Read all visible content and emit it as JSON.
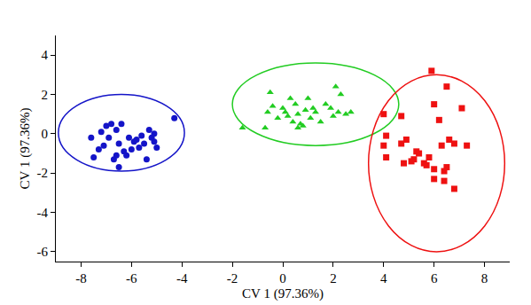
{
  "chart_data": {
    "type": "scatter",
    "x_label": "CV 1 (97.36%)",
    "y_label": "CV 1 (97.36%)",
    "xlim": [
      -9,
      9
    ],
    "ylim": [
      -6.5,
      5
    ],
    "xticks": [
      -8,
      -6,
      -4,
      -2,
      0,
      2,
      4,
      6,
      8
    ],
    "yticks": [
      -6,
      -4,
      -2,
      0,
      2,
      4
    ],
    "grid": false,
    "series": [
      {
        "color": "#1414c8",
        "marker": "circle",
        "x": [
          -7.6,
          -7.5,
          -7.2,
          -7.1,
          -7.0,
          -6.9,
          -6.8,
          -6.7,
          -6.6,
          -6.5,
          -6.5,
          -6.4,
          -6.3,
          -6.2,
          -6.1,
          -6.0,
          -5.9,
          -5.8,
          -5.7,
          -5.6,
          -5.5,
          -5.4,
          -5.3,
          -5.2,
          -5.1,
          -5.1,
          -5.0,
          -4.3,
          -6.6,
          -7.3
        ],
        "y": [
          -0.2,
          -1.2,
          0.1,
          -0.6,
          0.4,
          -0.2,
          0.5,
          -1.3,
          0.2,
          -0.5,
          -1.7,
          0.5,
          -0.9,
          -1.1,
          -0.2,
          -0.8,
          -0.4,
          -0.3,
          -0.7,
          -0.1,
          -0.5,
          -1.3,
          0.2,
          -0.2,
          -0.4,
          0.0,
          -0.7,
          0.8,
          -1.1,
          -0.8
        ],
        "ellipse": {
          "x0": -8.9,
          "x1": -3.9,
          "y0": -1.9,
          "y1": 2.0
        }
      },
      {
        "color": "#22cc22",
        "marker": "triangle-up",
        "x": [
          -1.6,
          -0.6,
          -0.5,
          -0.4,
          -0.2,
          0.0,
          0.1,
          0.2,
          0.3,
          0.4,
          0.5,
          0.6,
          0.6,
          0.7,
          0.8,
          0.9,
          1.0,
          1.2,
          1.3,
          1.5,
          1.7,
          1.9,
          2.0,
          2.1,
          2.2,
          2.3,
          2.5,
          2.7,
          -0.7,
          1.1
        ],
        "y": [
          0.3,
          1.1,
          2.1,
          1.4,
          0.8,
          1.3,
          1.1,
          0.9,
          1.8,
          0.6,
          1.5,
          0.3,
          1.0,
          0.5,
          0.4,
          1.2,
          1.8,
          1.3,
          1.1,
          0.6,
          1.5,
          1.3,
          0.9,
          2.4,
          1.1,
          2.0,
          1.0,
          1.1,
          0.3,
          0.8
        ],
        "ellipse": {
          "x0": -2.0,
          "x1": 4.6,
          "y0": -0.6,
          "y1": 3.6
        }
      },
      {
        "color": "#ee1111",
        "marker": "square",
        "x": [
          4.0,
          4.0,
          4.1,
          4.1,
          4.7,
          4.7,
          4.8,
          4.9,
          5.2,
          5.3,
          5.4,
          5.6,
          5.7,
          5.8,
          5.9,
          6.0,
          6.0,
          6.0,
          6.3,
          6.4,
          6.4,
          6.5,
          6.6,
          6.5,
          6.8,
          6.8,
          7.1,
          7.3,
          5.1,
          6.2
        ],
        "y": [
          1.0,
          -0.6,
          -0.1,
          -1.2,
          0.9,
          -0.5,
          -1.5,
          -0.3,
          -1.3,
          -0.9,
          -1.0,
          -1.5,
          -1.6,
          -1.2,
          3.2,
          -1.8,
          -2.3,
          1.5,
          -0.6,
          -1.9,
          -2.4,
          2.4,
          -0.3,
          -1.7,
          -0.5,
          -2.8,
          1.3,
          -0.6,
          -1.4,
          0.7
        ],
        "ellipse": {
          "x0": 3.4,
          "x1": 8.8,
          "y0": -6.0,
          "y1": 3.0
        }
      }
    ]
  }
}
